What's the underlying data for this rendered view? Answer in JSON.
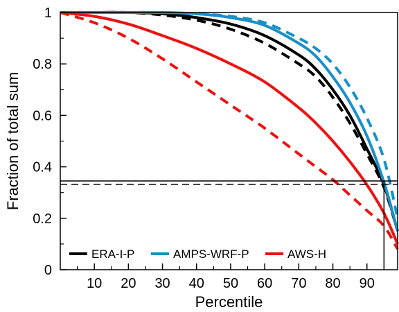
{
  "chart_data": {
    "type": "line",
    "xlabel": "Percentile",
    "ylabel": "Fraction of total sum",
    "xlim": [
      0,
      99
    ],
    "ylim": [
      0,
      1
    ],
    "xticks": [
      10,
      20,
      30,
      40,
      50,
      60,
      70,
      80,
      90
    ],
    "yticks": [
      0,
      0.2,
      0.4,
      0.6,
      0.8,
      1
    ],
    "ytick_labels": [
      "0",
      "0.2",
      "0.4",
      "0.6",
      "0.8",
      "1"
    ],
    "grid": false,
    "legend": {
      "placement": "bottom-left",
      "entries": [
        {
          "label": "ERA-I-P",
          "color": "#000000"
        },
        {
          "label": "AMPS-WRF-P",
          "color": "#1a8fc8"
        },
        {
          "label": "AWS-H",
          "color": "#ee1111"
        }
      ]
    },
    "series": [
      {
        "color": "#000000",
        "dash": false,
        "x": [
          0,
          10,
          20,
          30,
          40,
          50,
          60,
          70,
          75,
          80,
          85,
          90,
          95,
          99
        ],
        "y": [
          1.0,
          1.0,
          1.0,
          0.995,
          0.98,
          0.955,
          0.91,
          0.835,
          0.78,
          0.7,
          0.6,
          0.47,
          0.33,
          0.15
        ]
      },
      {
        "color": "#000000",
        "dash": true,
        "x": [
          0,
          10,
          20,
          30,
          40,
          50,
          60,
          70,
          75,
          80,
          85,
          90,
          95,
          99
        ],
        "y": [
          1.0,
          1.0,
          1.0,
          0.99,
          0.97,
          0.935,
          0.88,
          0.8,
          0.75,
          0.67,
          0.57,
          0.45,
          0.32,
          0.15
        ]
      },
      {
        "color": "#1a8fc8",
        "dash": false,
        "x": [
          0,
          10,
          20,
          30,
          40,
          50,
          60,
          70,
          75,
          80,
          85,
          90,
          95,
          99
        ],
        "y": [
          1.0,
          1.0,
          1.0,
          1.0,
          0.995,
          0.98,
          0.95,
          0.88,
          0.83,
          0.75,
          0.65,
          0.52,
          0.34,
          0.15
        ]
      },
      {
        "color": "#1a8fc8",
        "dash": true,
        "x": [
          0,
          10,
          20,
          30,
          40,
          50,
          60,
          70,
          75,
          80,
          85,
          90,
          95,
          99
        ],
        "y": [
          1.0,
          1.0,
          1.0,
          1.0,
          0.995,
          0.985,
          0.96,
          0.9,
          0.86,
          0.8,
          0.71,
          0.59,
          0.43,
          0.2
        ]
      },
      {
        "color": "#ee1111",
        "dash": false,
        "x": [
          0,
          10,
          20,
          30,
          40,
          50,
          60,
          70,
          75,
          80,
          85,
          90,
          95,
          99
        ],
        "y": [
          1.0,
          0.985,
          0.955,
          0.91,
          0.86,
          0.8,
          0.73,
          0.63,
          0.57,
          0.5,
          0.42,
          0.33,
          0.22,
          0.1
        ]
      },
      {
        "color": "#ee1111",
        "dash": true,
        "x": [
          0,
          10,
          20,
          30,
          40,
          50,
          60,
          70,
          75,
          80,
          85,
          90,
          95,
          99
        ],
        "y": [
          1.0,
          0.96,
          0.9,
          0.82,
          0.73,
          0.64,
          0.55,
          0.45,
          0.4,
          0.35,
          0.29,
          0.23,
          0.17,
          0.08
        ]
      }
    ],
    "reference_lines": [
      {
        "orientation": "horizontal",
        "y": 0.345,
        "dash": false
      },
      {
        "orientation": "horizontal",
        "y": 0.332,
        "dash": true
      },
      {
        "orientation": "vertical",
        "x": 95,
        "dash": false
      }
    ]
  }
}
